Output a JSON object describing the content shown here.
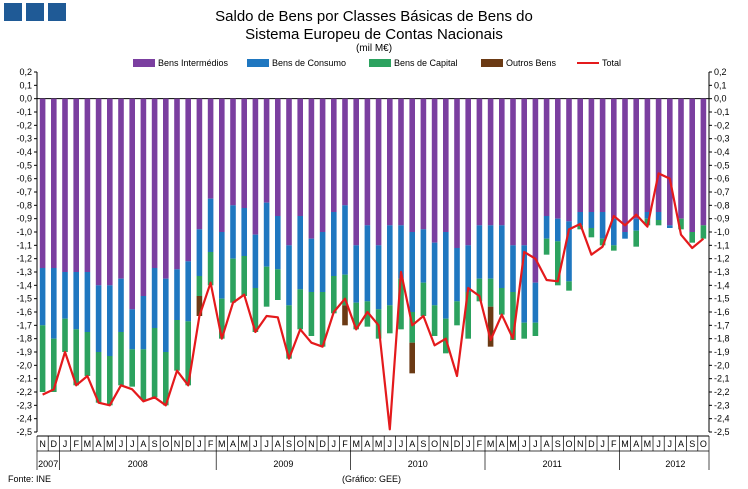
{
  "header": {
    "title_line1": "Saldo de Bens por Classes Básicas de Bens do",
    "title_line2": "Sistema Europeu de Contas Nacionais",
    "subtitle": "(mil M€)"
  },
  "footer": {
    "source": "Fonte: INE",
    "credit": "(Gráfico: GEE)"
  },
  "chart_data": {
    "type": "bar",
    "stacked": true,
    "ylim": [
      -2.5,
      0.2
    ],
    "yticks": [
      "0,2",
      "0,1",
      "0,0",
      "-0,1",
      "-0,2",
      "-0,3",
      "-0,4",
      "-0,5",
      "-0,6",
      "-0,7",
      "-0,8",
      "-0,9",
      "-1,0",
      "-1,1",
      "-1,2",
      "-1,3",
      "-1,4",
      "-1,5",
      "-1,6",
      "-1,7",
      "-1,8",
      "-1,9",
      "-2,0",
      "-2,1",
      "-2,2",
      "-2,3",
      "-2,4",
      "-2,5"
    ],
    "month_labels": [
      "N",
      "D",
      "J",
      "F",
      "M",
      "A",
      "M",
      "J",
      "J",
      "A",
      "S",
      "O",
      "N",
      "D",
      "J",
      "F",
      "M",
      "A",
      "M",
      "J",
      "J",
      "A",
      "S",
      "O",
      "N",
      "D",
      "J",
      "F",
      "M",
      "A",
      "M",
      "J",
      "J",
      "A",
      "S",
      "O",
      "N",
      "D",
      "J",
      "F",
      "M",
      "A",
      "M",
      "J",
      "J",
      "A",
      "S",
      "O",
      "N",
      "D",
      "J",
      "F",
      "M",
      "A",
      "M",
      "J",
      "J",
      "A",
      "S",
      "O"
    ],
    "year_labels": [
      "2007",
      "2008",
      "2009",
      "2010",
      "2011",
      "2012"
    ],
    "year_label_months": [
      2,
      14,
      12,
      12,
      12,
      10
    ],
    "legend_position": "top",
    "grid": false,
    "series": [
      {
        "name": "Bens Intermédios",
        "color": "#7b3fa0",
        "values": [
          -1.27,
          -1.27,
          -1.3,
          -1.3,
          -1.3,
          -1.4,
          -1.4,
          -1.35,
          -1.58,
          -1.48,
          -1.27,
          -1.35,
          -1.28,
          -1.22,
          -0.98,
          -0.75,
          -1.0,
          -0.8,
          -0.82,
          -1.02,
          -0.78,
          -0.88,
          -1.1,
          -0.88,
          -1.05,
          -1.0,
          -0.85,
          -0.8,
          -1.1,
          -0.95,
          -1.1,
          -0.95,
          -0.95,
          -1.0,
          -0.98,
          -1.08,
          -1.0,
          -1.12,
          -1.1,
          -0.95,
          -0.95,
          -0.95,
          -1.1,
          -1.1,
          -1.38,
          -0.88,
          -0.9,
          -0.92,
          -0.85,
          -0.85,
          -0.85,
          -0.9,
          -1.0,
          -0.9,
          -0.85,
          -0.85,
          -0.95,
          -0.9,
          -1.0,
          -0.95
        ]
      },
      {
        "name": "Bens de Consumo",
        "color": "#1f77c0",
        "values": [
          -0.43,
          -0.53,
          -0.35,
          -0.43,
          -0.45,
          -0.5,
          -0.53,
          -0.4,
          -0.3,
          -0.4,
          -0.45,
          -0.55,
          -0.38,
          -0.45,
          -0.35,
          -0.4,
          -0.5,
          -0.4,
          -0.36,
          -0.4,
          -0.48,
          -0.4,
          -0.45,
          -0.55,
          -0.4,
          -0.45,
          -0.48,
          -0.52,
          -0.43,
          -0.57,
          -0.48,
          -0.6,
          -0.4,
          -0.6,
          -0.4,
          -0.47,
          -0.65,
          -0.4,
          -0.35,
          -0.4,
          -0.4,
          -0.47,
          -0.35,
          -0.58,
          -0.3,
          -0.17,
          -0.17,
          -0.45,
          -0.1,
          -0.12,
          -0.2,
          -0.2,
          -0.05,
          -0.09,
          -0.05,
          -0.06,
          -0.02,
          0,
          0,
          0
        ]
      },
      {
        "name": "Bens de Capital",
        "color": "#2ca25f",
        "values": [
          -0.5,
          -0.4,
          -0.25,
          -0.42,
          -0.33,
          -0.38,
          -0.37,
          -0.4,
          -0.28,
          -0.38,
          -0.52,
          -0.4,
          -0.38,
          -0.48,
          -0.15,
          -0.25,
          -0.3,
          -0.33,
          -0.3,
          -0.33,
          -0.3,
          -0.23,
          -0.4,
          -0.3,
          -0.33,
          -0.41,
          -0.28,
          -0.23,
          -0.2,
          -0.19,
          -0.22,
          -0.21,
          -0.38,
          -0.23,
          -0.25,
          -0.23,
          -0.26,
          -0.18,
          -0.35,
          -0.17,
          -0.21,
          -0.2,
          -0.36,
          -0.12,
          -0.1,
          -0.12,
          -0.33,
          -0.07,
          -0.03,
          -0.07,
          -0.05,
          -0.04,
          0,
          -0.12,
          -0.05,
          -0.04,
          0,
          -0.08,
          -0.08,
          -0.1
        ]
      },
      {
        "name": "Outros Bens",
        "color": "#6b3a14",
        "values": [
          0,
          0,
          0,
          0,
          0,
          0,
          0,
          0,
          0,
          0,
          0,
          0,
          0,
          0,
          -0.15,
          0,
          0,
          0,
          0,
          0,
          0,
          0,
          0,
          0,
          0,
          0,
          0,
          -0.15,
          0,
          0,
          0,
          0,
          0,
          -0.23,
          0,
          0,
          0,
          0,
          0,
          0,
          -0.3,
          0,
          0,
          0,
          0,
          0,
          0,
          0,
          0,
          0,
          0,
          0,
          0,
          0,
          0,
          0,
          0,
          0,
          0,
          0
        ]
      },
      {
        "name": "Total",
        "color": "#e41a1c",
        "type": "line",
        "values": [
          -2.22,
          -2.18,
          -1.9,
          -2.15,
          -2.08,
          -2.28,
          -2.3,
          -2.15,
          -2.18,
          -2.27,
          -2.24,
          -2.3,
          -2.04,
          -2.15,
          -1.63,
          -1.38,
          -1.8,
          -1.53,
          -1.47,
          -1.75,
          -1.63,
          -1.64,
          -1.95,
          -1.73,
          -1.83,
          -1.86,
          -1.6,
          -1.5,
          -1.73,
          -1.6,
          -1.7,
          -2.48,
          -1.3,
          -1.7,
          -1.63,
          -1.85,
          -1.8,
          -2.08,
          -1.42,
          -1.48,
          -1.81,
          -1.62,
          -1.8,
          -1.15,
          -1.2,
          -1.36,
          -1.37,
          -0.98,
          -0.94,
          -1.17,
          -1.11,
          -0.88,
          -0.95,
          -0.87,
          -0.96,
          -0.56,
          -0.6,
          -1.02,
          -1.12,
          -1.05
        ]
      }
    ]
  }
}
